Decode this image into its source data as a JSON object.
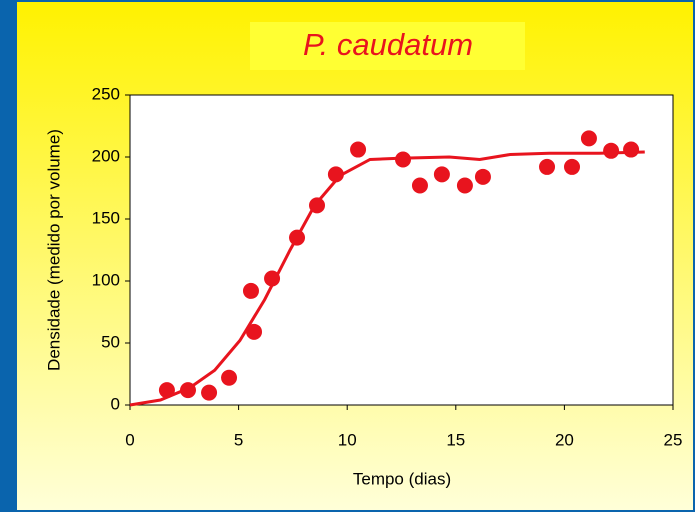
{
  "chart_data": {
    "type": "scatter",
    "title": "P. caudatum",
    "x_label": "Tempo (dias)",
    "y_label": "Densidade (medido por volume)",
    "xlim": [
      0,
      25
    ],
    "xticks": [
      0,
      5,
      10,
      15,
      20,
      25
    ],
    "ylim": [
      0,
      250
    ],
    "yticks": [
      0,
      50,
      100,
      150,
      200,
      250
    ],
    "grid": false,
    "points": {
      "color": "#e8141e",
      "x": [
        1.7,
        2.67,
        3.64,
        4.56,
        5.57,
        5.71,
        6.54,
        7.69,
        8.61,
        9.48,
        10.5,
        12.57,
        13.35,
        14.36,
        15.42,
        16.25,
        19.2,
        20.35,
        21.13,
        22.15,
        23.07
      ],
      "y": [
        12,
        12,
        10,
        22,
        92,
        59,
        102,
        135,
        161,
        186,
        206,
        198,
        177,
        186,
        177,
        184,
        192,
        192,
        215,
        205,
        206
      ]
    },
    "curve": {
      "color": "#e8141e",
      "x": [
        0,
        1.4,
        2.76,
        3.9,
        5.06,
        6.2,
        7.37,
        8.5,
        9.67,
        11.05,
        12.4,
        14.7,
        16.1,
        17.5,
        19.3,
        21.6,
        23.7
      ],
      "y": [
        0,
        4,
        14,
        28,
        52,
        85,
        125,
        161,
        185,
        198,
        199,
        200,
        198,
        202,
        203,
        203,
        204
      ]
    }
  }
}
